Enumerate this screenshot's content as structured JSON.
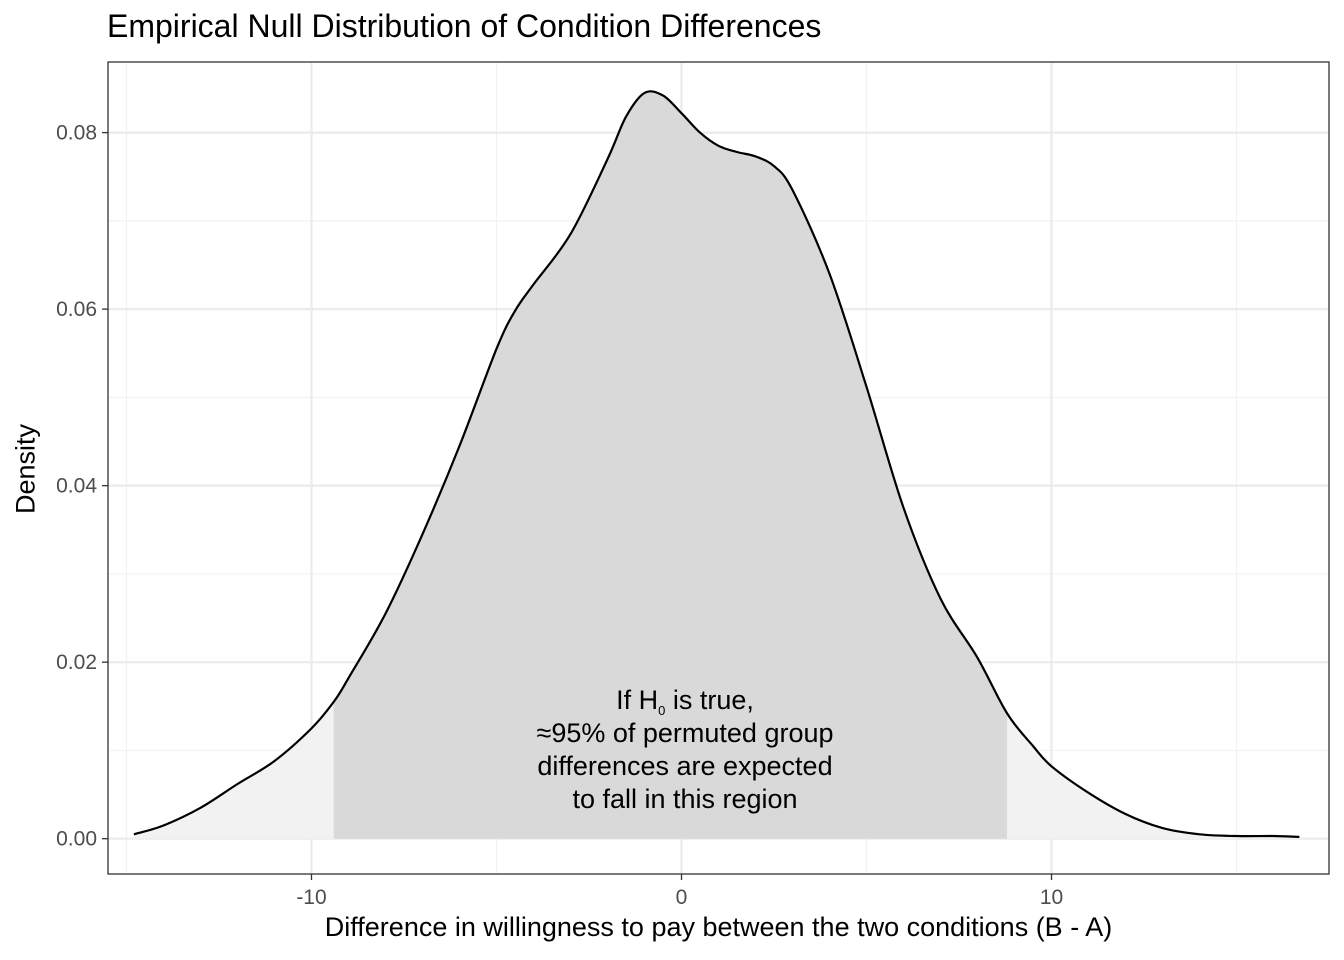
{
  "chart_data": {
    "type": "area",
    "title": "Empirical Null Distribution of Condition Differences",
    "xlabel": "Difference in willingness to pay between the two conditions (B - A)",
    "ylabel": "Density",
    "xlim": [
      -15.5,
      17.5
    ],
    "ylim": [
      -0.004,
      0.088
    ],
    "x_ticks": [
      -10,
      0,
      10
    ],
    "x_tick_labels": [
      "-10",
      "0",
      "10"
    ],
    "y_ticks": [
      0.0,
      0.02,
      0.04,
      0.06,
      0.08
    ],
    "y_tick_labels": [
      "0.00",
      "0.02",
      "0.04",
      "0.06",
      "0.08"
    ],
    "grid": true,
    "critical_region": [
      -9.4,
      8.8
    ],
    "series": [
      {
        "x": [
          -14.8,
          -14.0,
          -13.0,
          -12.0,
          -11.0,
          -10.0,
          -9.4,
          -9.0,
          -8.0,
          -7.0,
          -6.0,
          -5.0,
          -4.5,
          -4.0,
          -3.0,
          -2.0,
          -1.5,
          -1.0,
          -0.5,
          0.0,
          0.5,
          1.0,
          1.5,
          2.0,
          2.5,
          3.0,
          4.0,
          5.0,
          6.0,
          7.0,
          8.0,
          8.8,
          9.5,
          10.0,
          11.0,
          12.0,
          13.0,
          14.0,
          15.0,
          16.0,
          16.7
        ],
        "y": [
          0.0005,
          0.0015,
          0.0035,
          0.0062,
          0.0088,
          0.0125,
          0.0155,
          0.0182,
          0.0255,
          0.0345,
          0.0445,
          0.0555,
          0.0598,
          0.0628,
          0.0685,
          0.077,
          0.0818,
          0.0845,
          0.0842,
          0.0822,
          0.08,
          0.0785,
          0.0778,
          0.0773,
          0.0762,
          0.0735,
          0.064,
          0.0512,
          0.0375,
          0.0272,
          0.0205,
          0.0142,
          0.0105,
          0.0082,
          0.0052,
          0.0028,
          0.0012,
          0.0005,
          0.0003,
          0.0003,
          0.0002
        ]
      }
    ],
    "annotation": {
      "line1_before": "If H",
      "line1_sub": "0",
      "line1_after": " is true,",
      "line2": "≈95% of permuted group",
      "line3": "differences are expected",
      "line4": "to fall in this region"
    },
    "colors": {
      "curve": "#000000",
      "center_fill": "#d9d9d9",
      "tail_fill": "#f2f2f2",
      "grid_major": "#ebebeb",
      "grid_minor": "#f2f2f2",
      "axis_text": "#4d4d4d"
    }
  }
}
